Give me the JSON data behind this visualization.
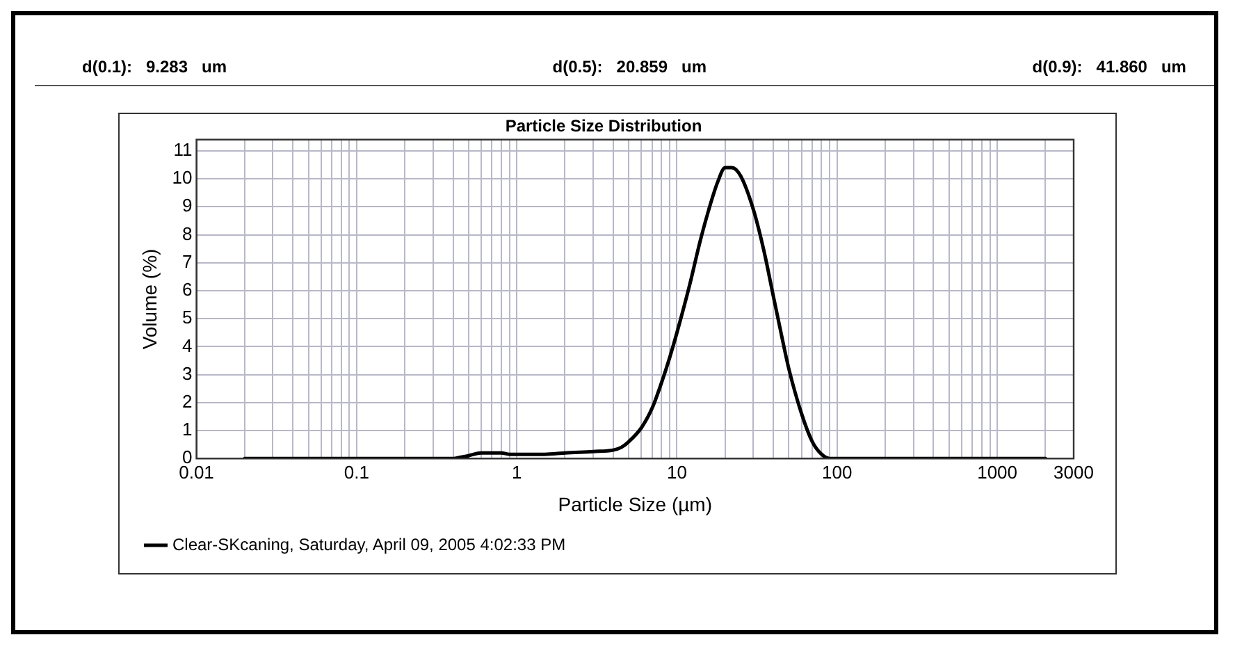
{
  "chart_data": {
    "type": "line",
    "title": "Particle Size Distribution",
    "xlabel": "Particle Size (µm)",
    "ylabel": "Volume (%)",
    "annotations": [
      "d(0.1):   9.283   um",
      "d(0.5):   20.859   um",
      "d(0.9):   41.860   um"
    ],
    "series": [
      {
        "name": "Clear-SKcaning, Saturday, April 09, 2005 4:02:33 PM",
        "color": "#000000",
        "x": [
          0.02,
          0.05,
          0.1,
          0.2,
          0.4,
          0.45,
          0.5,
          0.6,
          0.8,
          0.9,
          1.5,
          2,
          3,
          4,
          4.5,
          5,
          6,
          7,
          8,
          9,
          10,
          12,
          14,
          16,
          18,
          20,
          22,
          25,
          30,
          35,
          40,
          45,
          50,
          60,
          70,
          80,
          90,
          100,
          200,
          500,
          1000,
          2000
        ],
        "values": [
          0,
          0,
          0,
          0,
          0,
          0.05,
          0.1,
          0.2,
          0.2,
          0.15,
          0.15,
          0.2,
          0.25,
          0.3,
          0.4,
          0.6,
          1.1,
          1.8,
          2.7,
          3.6,
          4.5,
          6.2,
          7.8,
          9.0,
          9.9,
          10.4,
          10.4,
          10.1,
          8.9,
          7.4,
          5.8,
          4.4,
          3.2,
          1.6,
          0.6,
          0.15,
          0,
          0,
          0,
          0,
          0,
          0
        ]
      }
    ],
    "log": "x",
    "xlim": [
      0.01,
      3000
    ],
    "xticks": [
      0.01,
      {
        "value": 0.02,
        "label": null
      },
      {
        "value": 0.03,
        "label": null
      },
      {
        "value": 0.04,
        "label": null
      },
      {
        "value": 0.05,
        "label": null
      },
      {
        "value": 0.06,
        "label": null
      },
      {
        "value": 0.07,
        "label": null
      },
      {
        "value": 0.08,
        "label": null
      },
      {
        "value": 0.09,
        "label": null
      },
      0.1,
      {
        "value": 0.2,
        "label": null
      },
      {
        "value": 0.3,
        "label": null
      },
      {
        "value": 0.4,
        "label": null
      },
      {
        "value": 0.5,
        "label": null
      },
      {
        "value": 0.6,
        "label": null
      },
      {
        "value": 0.7,
        "label": null
      },
      {
        "value": 0.8,
        "label": null
      },
      {
        "value": 0.9,
        "label": null
      },
      1,
      {
        "value": 2,
        "label": null
      },
      {
        "value": 3,
        "label": null
      },
      {
        "value": 4,
        "label": null
      },
      {
        "value": 5,
        "label": null
      },
      {
        "value": 6,
        "label": null
      },
      {
        "value": 7,
        "label": null
      },
      {
        "value": 8,
        "label": null
      },
      {
        "value": 9,
        "label": null
      },
      10,
      {
        "value": 20,
        "label": null
      },
      {
        "value": 30,
        "label": null
      },
      {
        "value": 40,
        "label": null
      },
      {
        "value": 50,
        "label": null
      },
      {
        "value": 60,
        "label": null
      },
      {
        "value": 70,
        "label": null
      },
      {
        "value": 80,
        "label": null
      },
      {
        "value": 90,
        "label": null
      },
      100,
      {
        "value": 200,
        "label": null
      },
      {
        "value": 300,
        "label": null
      },
      {
        "value": 400,
        "label": null
      },
      {
        "value": 500,
        "label": null
      },
      {
        "value": 600,
        "label": null
      },
      {
        "value": 700,
        "label": null
      },
      {
        "value": 800,
        "label": null
      },
      {
        "value": 900,
        "label": null
      },
      1000,
      {
        "value": 2000,
        "label": null
      },
      3000
    ],
    "ylim": [
      0,
      11.4
    ],
    "yticks": [
      0,
      1,
      2,
      3,
      4,
      5,
      6,
      7,
      8,
      9,
      10,
      11
    ],
    "grid": true,
    "legend": "bottom",
    "marker": "none",
    "line_style": "solid"
  }
}
